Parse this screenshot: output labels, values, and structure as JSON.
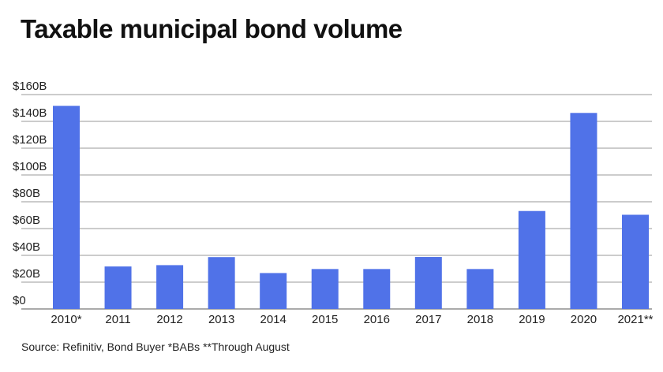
{
  "chart_data": {
    "type": "bar",
    "title": "Taxable municipal bond volume",
    "source": "Source: Refinitiv, Bond Buyer *BABs **Through August",
    "xlabel": "",
    "ylabel": "",
    "categories": [
      "2010*",
      "2011",
      "2012",
      "2013",
      "2014",
      "2015",
      "2016",
      "2017",
      "2018",
      "2019",
      "2020",
      "2021**"
    ],
    "values": [
      151.6,
      31.7,
      32.7,
      38.7,
      26.8,
      29.8,
      29.8,
      38.8,
      29.8,
      73.1,
      146.3,
      70.3
    ],
    "unit": "billion USD",
    "ylim": [
      0,
      160
    ],
    "yticks": [
      0,
      20,
      40,
      60,
      80,
      100,
      120,
      140,
      160
    ],
    "ytick_labels": [
      "$0",
      "$20B",
      "$40B",
      "$60B",
      "$80B",
      "$100B",
      "$120B",
      "$140B",
      "$160B"
    ],
    "grid": true,
    "legend": "none",
    "bar_color": "#5072E8",
    "grid_color": "#999999"
  }
}
